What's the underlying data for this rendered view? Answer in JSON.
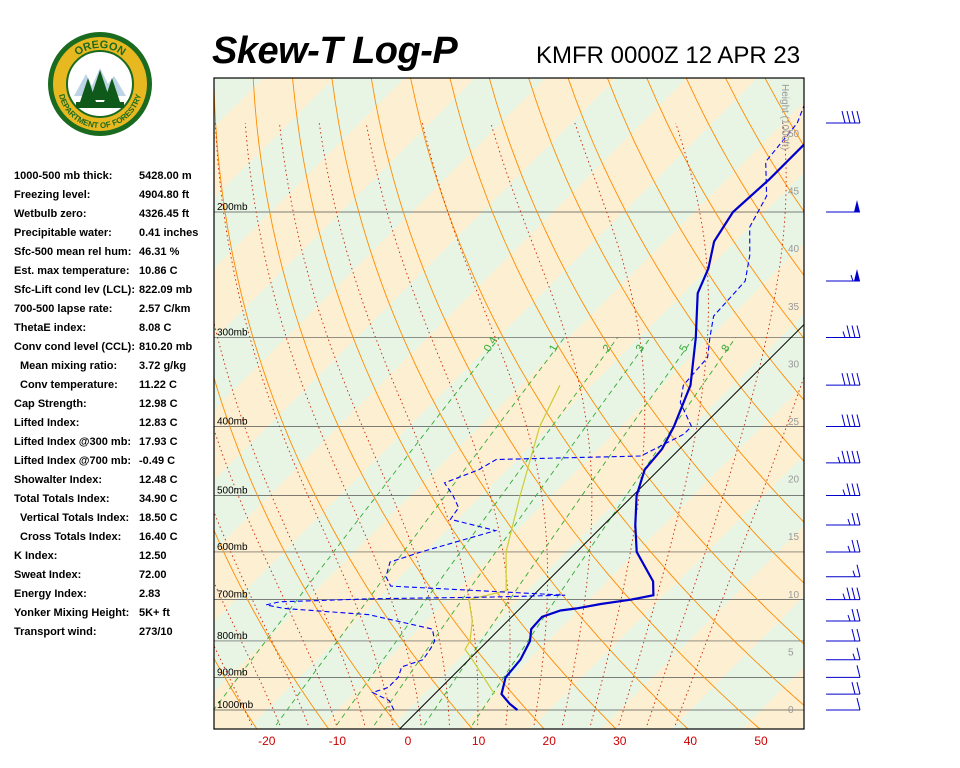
{
  "header": {
    "title": "Skew-T Log-P",
    "station_time": "KMFR 0000Z 12 APR 23"
  },
  "logo": {
    "text_top": "OREGON",
    "text_bottom": "DEPARTMENT OF FORESTRY",
    "colors": {
      "ring": "#1a6b1f",
      "gold": "#e8b820",
      "tree": "#0f5a1a"
    }
  },
  "indices": [
    {
      "label": "1000-500 mb thick:",
      "value": "5428.00 m",
      "indent": false
    },
    {
      "label": "Freezing level:",
      "value": "4904.80 ft",
      "indent": false
    },
    {
      "label": "Wetbulb zero:",
      "value": "4326.45 ft",
      "indent": false
    },
    {
      "label": "Precipitable water:",
      "value": "0.41 inches",
      "indent": false
    },
    {
      "label": "Sfc-500 mean rel hum:",
      "value": "46.31 %",
      "indent": false
    },
    {
      "label": "Est. max temperature:",
      "value": "10.86 C",
      "indent": false
    },
    {
      "label": "Sfc-Lift cond lev (LCL):",
      "value": "822.09 mb",
      "indent": false
    },
    {
      "label": "700-500 lapse rate:",
      "value": "2.57 C/km",
      "indent": false
    },
    {
      "label": "ThetaE index:",
      "value": "8.08 C",
      "indent": false
    },
    {
      "label": "Conv cond level (CCL):",
      "value": "810.20 mb",
      "indent": false
    },
    {
      "label": "Mean mixing ratio:",
      "value": "3.72 g/kg",
      "indent": true
    },
    {
      "label": "Conv temperature:",
      "value": "11.22 C",
      "indent": true
    },
    {
      "label": "Cap Strength:",
      "value": "12.98 C",
      "indent": false
    },
    {
      "label": "Lifted Index:",
      "value": "12.83 C",
      "indent": false
    },
    {
      "label": "Lifted Index @300 mb:",
      "value": "17.93 C",
      "indent": false
    },
    {
      "label": "Lifted Index @700 mb:",
      "value": "-0.49 C",
      "indent": false
    },
    {
      "label": "Showalter Index:",
      "value": "12.48 C",
      "indent": false
    },
    {
      "label": "Total Totals Index:",
      "value": "34.90 C",
      "indent": false
    },
    {
      "label": "Vertical Totals Index:",
      "value": "18.50 C",
      "indent": true
    },
    {
      "label": "Cross Totals Index:",
      "value": "16.40 C",
      "indent": true
    },
    {
      "label": "K Index:",
      "value": "12.50",
      "indent": false
    },
    {
      "label": "Sweat Index:",
      "value": "72.00",
      "indent": false
    },
    {
      "label": "Energy Index:",
      "value": "2.83",
      "indent": false
    },
    {
      "label": "Yonker Mixing Height:",
      "value": "5K+ ft",
      "indent": false
    },
    {
      "label": "Transport wind:",
      "value": "273/10",
      "indent": false
    }
  ],
  "chart_data": {
    "type": "line",
    "title": "Skew-T Log-P",
    "subtitle": "KMFR 0000Z 12 APR 23",
    "x_ticks": [
      "-20",
      "-10",
      "0",
      "10",
      "20",
      "30",
      "40",
      "50"
    ],
    "pressure_labels": [
      "200mb",
      "300mb",
      "400mb",
      "500mb",
      "600mb",
      "700mb",
      "800mb",
      "900mb",
      "1000mb"
    ],
    "height_axis": {
      "label": "Height (1000ft)",
      "ticks": [
        "50",
        "45",
        "40",
        "35",
        "30",
        "25",
        "20",
        "15",
        "10",
        "5",
        "0"
      ]
    },
    "mixing_ratio_labels": [
      "0.4",
      "1",
      "2",
      "3",
      "5",
      "8"
    ],
    "colors": {
      "temperature": "#0000cc",
      "dewpoint": "#0000ff",
      "parcel": "#cccc33",
      "dry_adiabat": "#ff8c00",
      "moist_adiabat": "#cc2200",
      "mixing_ratio": "#33aa33",
      "isotherm_dark": "#fde9c8",
      "isotherm_light": "#e6f5e6",
      "axis_tick": "#cc0000"
    },
    "series": [
      {
        "name": "Temperature",
        "points": [
          [
            1000,
            15.5
          ],
          [
            980,
            13.5
          ],
          [
            950,
            11
          ],
          [
            900,
            9.2
          ],
          [
            850,
            8.8
          ],
          [
            800,
            7.5
          ],
          [
            770,
            6.0
          ],
          [
            740,
            5.8
          ],
          [
            725,
            7.5
          ],
          [
            720,
            9.5
          ],
          [
            710,
            12.3
          ],
          [
            700,
            16
          ],
          [
            690,
            18.5
          ],
          [
            660,
            16.5
          ],
          [
            600,
            10
          ],
          [
            550,
            6
          ],
          [
            500,
            2
          ],
          [
            460,
            -0.5
          ],
          [
            430,
            -1
          ],
          [
            400,
            -2.5
          ],
          [
            350,
            -6
          ],
          [
            300,
            -12
          ],
          [
            260,
            -18
          ],
          [
            240,
            -20
          ],
          [
            220,
            -23
          ],
          [
            200,
            -24.5
          ],
          [
            180,
            -24
          ],
          [
            160,
            -24
          ],
          [
            150,
            -25.5
          ],
          [
            145,
            -23
          ],
          [
            140,
            -21.5
          ],
          [
            130,
            -18.5
          ],
          [
            124,
            -18.5
          ],
          [
            115,
            -16.5
          ],
          [
            102,
            -14.5
          ]
        ]
      },
      {
        "name": "Dewpoint",
        "points": [
          [
            1000,
            -2
          ],
          [
            970,
            -4
          ],
          [
            945,
            -7.5
          ],
          [
            930,
            -6
          ],
          [
            900,
            -6
          ],
          [
            870,
            -7
          ],
          [
            850,
            -5
          ],
          [
            820,
            -5.5
          ],
          [
            800,
            -6
          ],
          [
            770,
            -8
          ],
          [
            735,
            -19
          ],
          [
            720,
            -32
          ],
          [
            712,
            -35
          ],
          [
            705,
            -33.5
          ],
          [
            698,
            -21
          ],
          [
            694,
            -4
          ],
          [
            690,
            6
          ],
          [
            670,
            -20
          ],
          [
            650,
            -22
          ],
          [
            620,
            -23.5
          ],
          [
            600,
            -20.5
          ],
          [
            560,
            -13
          ],
          [
            540,
            -21
          ],
          [
            520,
            -21.5
          ],
          [
            500,
            -24
          ],
          [
            480,
            -27
          ],
          [
            460,
            -24
          ],
          [
            445,
            -23
          ],
          [
            440,
            -3
          ],
          [
            425,
            -1.5
          ],
          [
            410,
            0
          ],
          [
            400,
            0
          ],
          [
            370,
            -5
          ],
          [
            350,
            -7
          ],
          [
            320,
            -7.5
          ],
          [
            300,
            -10
          ],
          [
            280,
            -12.5
          ],
          [
            250,
            -13
          ],
          [
            230,
            -16
          ],
          [
            210,
            -20
          ],
          [
            190,
            -22
          ],
          [
            170,
            -27
          ],
          [
            150,
            -28
          ],
          [
            120,
            -34
          ]
        ]
      },
      {
        "name": "Parcel",
        "points": [
          [
            950,
            10
          ],
          [
            850,
            2
          ],
          [
            822,
            -0.5
          ],
          [
            800,
            -1
          ],
          [
            750,
            -3.5
          ],
          [
            700,
            -7
          ],
          [
            680,
            -3
          ],
          [
            600,
            -8.5
          ],
          [
            500,
            -14.5
          ],
          [
            400,
            -21.5
          ],
          [
            350,
            -24.5
          ]
        ]
      }
    ],
    "wind_barbs": [
      {
        "pressure": 1000,
        "speed": 10
      },
      {
        "pressure": 950,
        "speed": 20
      },
      {
        "pressure": 900,
        "speed": 10
      },
      {
        "pressure": 850,
        "speed": 15
      },
      {
        "pressure": 800,
        "speed": 20
      },
      {
        "pressure": 750,
        "speed": 25
      },
      {
        "pressure": 700,
        "speed": 35
      },
      {
        "pressure": 650,
        "speed": 15
      },
      {
        "pressure": 600,
        "speed": 25
      },
      {
        "pressure": 550,
        "speed": 25
      },
      {
        "pressure": 500,
        "speed": 35
      },
      {
        "pressure": 450,
        "speed": 45
      },
      {
        "pressure": 400,
        "speed": 40
      },
      {
        "pressure": 350,
        "speed": 40
      },
      {
        "pressure": 300,
        "speed": 35
      },
      {
        "pressure": 250,
        "speed": 55
      },
      {
        "pressure": 200,
        "speed": 50
      },
      {
        "pressure": 150,
        "speed": 40
      },
      {
        "pressure": 120,
        "speed": 40
      },
      {
        "pressure": 100,
        "speed": 35
      }
    ]
  }
}
